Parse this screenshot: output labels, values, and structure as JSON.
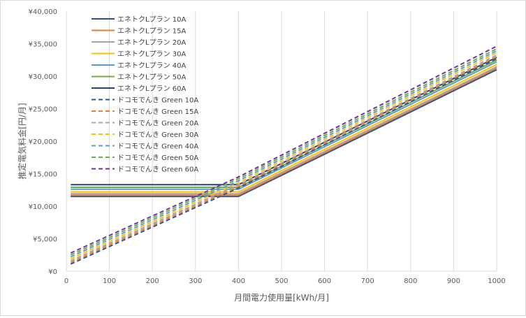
{
  "chart_data": {
    "type": "line",
    "title": "",
    "xlabel": "月間電力使用量[kWh/月]",
    "ylabel": "推定電気料金[円/月]",
    "xlim": [
      0,
      1000
    ],
    "ylim": [
      0,
      40000
    ],
    "x_ticks": [
      "0",
      "100",
      "200",
      "300",
      "400",
      "500",
      "600",
      "700",
      "800",
      "900",
      "1000"
    ],
    "y_ticks": [
      "¥0",
      "¥5,000",
      "¥10,000",
      "¥15,000",
      "¥20,000",
      "¥25,000",
      "¥30,000",
      "¥35,000",
      "¥40,000"
    ],
    "grid": "vertical",
    "legend_position": "top-left",
    "series": [
      {
        "name": "エネトクLプラン 10A",
        "color": "#2f528f",
        "dash": false,
        "x": [
          10,
          400,
          1000
        ],
        "y": [
          11500,
          11500,
          31000
        ]
      },
      {
        "name": "エネトクLプラン 15A",
        "color": "#ed7d31",
        "dash": false,
        "x": [
          10,
          400,
          1000
        ],
        "y": [
          11700,
          11700,
          31250
        ]
      },
      {
        "name": "エネトクLプラン 20A",
        "color": "#a5a5a5",
        "dash": false,
        "x": [
          10,
          400,
          1000
        ],
        "y": [
          11900,
          11900,
          31450
        ]
      },
      {
        "name": "エネトクLプラン 30A",
        "color": "#ffc000",
        "dash": false,
        "x": [
          10,
          400,
          1000
        ],
        "y": [
          12200,
          12200,
          31800
        ]
      },
      {
        "name": "エネトクLプラン 40A",
        "color": "#5b9bd5",
        "dash": false,
        "x": [
          10,
          400,
          1000
        ],
        "y": [
          12600,
          12600,
          32200
        ]
      },
      {
        "name": "エネトクLプラン 50A",
        "color": "#70ad47",
        "dash": false,
        "x": [
          10,
          400,
          1000
        ],
        "y": [
          12900,
          12900,
          32500
        ]
      },
      {
        "name": "エネトクLプラン 60A",
        "color": "#264478",
        "dash": false,
        "x": [
          10,
          400,
          1000
        ],
        "y": [
          13300,
          13300,
          32900
        ]
      },
      {
        "name": "ドコモでんき Green 10A",
        "color": "#2f5597",
        "dash": true,
        "x": [
          10,
          400,
          1000
        ],
        "y": [
          1100,
          12800,
          32700
        ]
      },
      {
        "name": "ドコモでんき Green 15A",
        "color": "#ed7d31",
        "dash": true,
        "x": [
          10,
          400,
          1000
        ],
        "y": [
          1350,
          13050,
          33000
        ]
      },
      {
        "name": "ドコモでんき Green 20A",
        "color": "#a5a5a5",
        "dash": true,
        "x": [
          10,
          400,
          1000
        ],
        "y": [
          1600,
          13300,
          33250
        ]
      },
      {
        "name": "ドコモでんき Green 30A",
        "color": "#ffc000",
        "dash": true,
        "x": [
          10,
          400,
          1000
        ],
        "y": [
          1900,
          13600,
          33600
        ]
      },
      {
        "name": "ドコモでんき Green 40A",
        "color": "#5b9bd5",
        "dash": true,
        "x": [
          10,
          400,
          1000
        ],
        "y": [
          2200,
          13900,
          33900
        ]
      },
      {
        "name": "ドコモでんき Green 50A",
        "color": "#70ad47",
        "dash": true,
        "x": [
          10,
          400,
          1000
        ],
        "y": [
          2500,
          14200,
          34200
        ]
      },
      {
        "name": "ドコモでんき Green 60A",
        "color": "#7030a0",
        "dash": true,
        "x": [
          10,
          400,
          1000
        ],
        "y": [
          2800,
          14500,
          34600
        ]
      }
    ]
  }
}
